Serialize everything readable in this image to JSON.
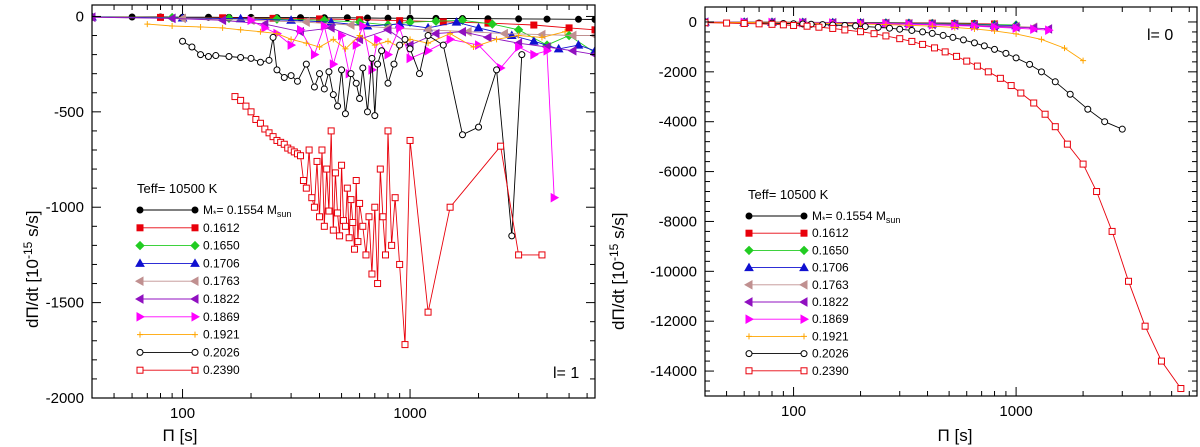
{
  "chart_data": [
    {
      "type": "line",
      "panel": "left",
      "xscale": "log",
      "xlim": [
        40,
        6500
      ],
      "ylim": [
        -2000,
        60
      ],
      "xticks": [
        100,
        1000
      ],
      "xtick_labels": [
        "100",
        "1000"
      ],
      "yticks": [
        0,
        -500,
        -1000,
        -1500,
        -2000
      ],
      "ytick_labels": [
        "0",
        "-500",
        "-1000",
        "-1500",
        "-2000"
      ],
      "xlabel": "Π [s]",
      "ylabel": "dΠ/dt [10",
      "ylabel_sup": "-15",
      "ylabel_tail": " s/s]",
      "annotation": "l= 1",
      "legend_title": "Teff= 10500 K",
      "legend_placement": "lower-left",
      "series": [
        {
          "name": "M*= 0.1554 Msun",
          "color": "#000000",
          "marker": "circle-filled",
          "x": [
            40,
            60,
            80,
            100,
            130,
            160,
            200,
            260,
            330,
            420,
            530,
            650,
            800,
            1000,
            1300,
            1700,
            2200,
            3000,
            4000,
            5500,
            6500
          ],
          "y": [
            -2,
            -3,
            -3,
            -4,
            -4,
            -5,
            -5,
            -6,
            -6,
            -7,
            -7,
            -8,
            -9,
            -9,
            -10,
            -11,
            -12,
            -13,
            -14,
            -15,
            -16
          ]
        },
        {
          "name": "0.1612",
          "color": "#e8000b",
          "marker": "square-filled",
          "x": [
            40,
            80,
            150,
            250,
            400,
            600,
            900,
            1400,
            2200,
            3500,
            5000,
            6500
          ],
          "y": [
            -3,
            -5,
            -7,
            -10,
            -13,
            -17,
            -22,
            -28,
            -35,
            -45,
            -60,
            -70
          ]
        },
        {
          "name": "0.1650",
          "color": "#22cc22",
          "marker": "diamond-filled",
          "x": [
            40,
            90,
            160,
            260,
            420,
            600,
            800,
            1000,
            1300,
            1700,
            2300,
            3000,
            4000,
            5000,
            6500
          ],
          "y": [
            -3,
            -6,
            -10,
            -14,
            -20,
            -30,
            -45,
            -30,
            -25,
            -20,
            -40,
            -70,
            -150,
            -100,
            -190
          ]
        },
        {
          "name": "0.1706",
          "color": "#1010d0",
          "marker": "triangle-up",
          "x": [
            40,
            100,
            180,
            300,
            450,
            650,
            900,
            1200,
            1600,
            2000,
            2800,
            3500,
            4500,
            5500,
            6500
          ],
          "y": [
            -3,
            -8,
            -12,
            -20,
            -30,
            -50,
            -40,
            -60,
            -30,
            -60,
            -100,
            -130,
            -170,
            -150,
            -180
          ]
        },
        {
          "name": "0.1763",
          "color": "#c09090",
          "marker": "triangle-left",
          "x": [
            40,
            100,
            200,
            350,
            550,
            800,
            1200,
            1800,
            2600,
            3800,
            5200,
            6500
          ],
          "y": [
            -4,
            -10,
            -20,
            -30,
            -45,
            -60,
            -70,
            -80,
            -90,
            -95,
            -100,
            -100
          ]
        },
        {
          "name": "0.1822",
          "color": "#9010c0",
          "marker": "triangle-left",
          "x": [
            40,
            90,
            150,
            230,
            330,
            450,
            600,
            800,
            1000,
            1300,
            1700,
            2200,
            3000,
            4000,
            5200,
            6500
          ],
          "y": [
            -4,
            -10,
            -20,
            -40,
            -80,
            -60,
            -120,
            -70,
            -150,
            -90,
            -80,
            -110,
            -140,
            -160,
            -180,
            -200
          ]
        },
        {
          "name": "0.1869",
          "color": "#ff00ff",
          "marker": "triangle-right",
          "x": [
            200,
            230,
            260,
            300,
            330,
            380,
            420,
            460,
            500,
            540,
            580,
            620,
            680,
            720,
            800,
            900,
            1000,
            1200,
            1500,
            2000,
            2500,
            3000,
            3500,
            4000,
            4300
          ],
          "y": [
            -20,
            -60,
            -90,
            -150,
            -70,
            -200,
            -50,
            -250,
            -100,
            -300,
            -150,
            -50,
            -280,
            -120,
            -200,
            -60,
            -220,
            -180,
            -120,
            -150,
            -270,
            -160,
            -200,
            -180,
            -950
          ]
        },
        {
          "name": "0.1921",
          "color": "#ffa500",
          "marker": "plus",
          "x": [
            70,
            90,
            120,
            150,
            180,
            220,
            260,
            300,
            350,
            400,
            460,
            520,
            600,
            700,
            800,
            900,
            1000,
            1200,
            1500,
            1900,
            2400,
            3000,
            3800,
            4800
          ],
          "y": [
            -40,
            -50,
            -55,
            -60,
            -70,
            -80,
            -90,
            -120,
            -140,
            -160,
            -120,
            -170,
            -100,
            -150,
            -130,
            -160,
            -120,
            -140,
            -90,
            -160,
            -120,
            -100,
            -110,
            -80
          ]
        },
        {
          "name": "0.2026",
          "color": "#000000",
          "marker": "circle-open",
          "x": [
            100,
            110,
            120,
            130,
            140,
            160,
            180,
            200,
            220,
            240,
            250,
            260,
            280,
            300,
            320,
            350,
            380,
            400,
            420,
            440,
            460,
            480,
            500,
            520,
            550,
            580,
            600,
            620,
            650,
            680,
            700,
            720,
            750,
            800,
            850,
            900,
            950,
            1000,
            1100,
            1200,
            1400,
            1700,
            2000,
            2400,
            2800,
            3100
          ],
          "y": [
            -130,
            -160,
            -200,
            -210,
            -205,
            -210,
            -215,
            -220,
            -240,
            -230,
            -110,
            -280,
            -320,
            -310,
            -340,
            -250,
            -370,
            -300,
            -380,
            -290,
            -410,
            -470,
            -280,
            -510,
            -300,
            -350,
            -430,
            -270,
            -500,
            -220,
            -520,
            -250,
            -180,
            -350,
            -250,
            -150,
            -120,
            -170,
            -300,
            -100,
            -150,
            -620,
            -580,
            -280,
            -1150,
            -200
          ]
        },
        {
          "name": "0.2390",
          "color": "#e8000b",
          "marker": "square-open",
          "x": [
            170,
            180,
            190,
            200,
            210,
            220,
            230,
            240,
            250,
            260,
            270,
            280,
            290,
            300,
            310,
            320,
            330,
            340,
            350,
            360,
            370,
            380,
            390,
            400,
            410,
            420,
            430,
            440,
            450,
            460,
            470,
            480,
            490,
            500,
            510,
            520,
            530,
            540,
            550,
            560,
            570,
            580,
            590,
            600,
            620,
            640,
            660,
            680,
            700,
            720,
            740,
            760,
            780,
            800,
            830,
            860,
            900,
            950,
            1000,
            1200,
            1500,
            2500,
            3000,
            3800
          ],
          "y": [
            -420,
            -440,
            -470,
            -500,
            -540,
            -560,
            -590,
            -610,
            -630,
            -650,
            -660,
            -670,
            -690,
            -700,
            -710,
            -720,
            -730,
            -860,
            -900,
            -700,
            -950,
            -1000,
            -760,
            -1050,
            -700,
            -1100,
            -800,
            -1020,
            -600,
            -1120,
            -820,
            -1030,
            -1150,
            -780,
            -1070,
            -1100,
            -900,
            -1160,
            -960,
            -1080,
            -1220,
            -860,
            -1180,
            -980,
            -1100,
            -1250,
            -1050,
            -1350,
            -1000,
            -1400,
            -800,
            -1050,
            -1250,
            -600,
            -1200,
            -950,
            -1300,
            -1720,
            -650,
            -1550,
            -1000,
            -680,
            -1250,
            -1250
          ]
        }
      ]
    },
    {
      "type": "line",
      "panel": "right",
      "xscale": "log",
      "xlim": [
        40,
        6500
      ],
      "ylim": [
        -15000,
        600
      ],
      "xticks": [
        100,
        1000
      ],
      "xtick_labels": [
        "100",
        "1000"
      ],
      "yticks": [
        0,
        -2000,
        -4000,
        -6000,
        -8000,
        -10000,
        -12000,
        -14000
      ],
      "ytick_labels": [
        "0",
        "-2000",
        "-4000",
        "-6000",
        "-8000",
        "-10000",
        "-12000",
        "-14000"
      ],
      "xlabel": "Π [s]",
      "ylabel": "dΠ/dt [10",
      "ylabel_sup": "-15",
      "ylabel_tail": " s/s]",
      "annotation": "l= 0",
      "legend_title": "Teff= 10500 K",
      "legend_placement": "lower-left",
      "series": [
        {
          "name": "M*= 0.1554 Msun",
          "color": "#000000",
          "marker": "circle-filled",
          "x": [
            40,
            60,
            80,
            110,
            150,
            200,
            260,
            330,
            420,
            530,
            650
          ],
          "y": [
            -5,
            -8,
            -10,
            -14,
            -18,
            -22,
            -28,
            -34,
            -40,
            -48,
            -55
          ]
        },
        {
          "name": "0.1612",
          "color": "#e8000b",
          "marker": "square-filled",
          "x": [
            40,
            60,
            80,
            110,
            150,
            200,
            260,
            330,
            420,
            530,
            650,
            800
          ],
          "y": [
            -6,
            -9,
            -12,
            -16,
            -22,
            -28,
            -35,
            -42,
            -50,
            -60,
            -70,
            -80
          ]
        },
        {
          "name": "0.1650",
          "color": "#22cc22",
          "marker": "diamond-filled",
          "x": [
            40,
            60,
            80,
            110,
            150,
            200,
            260,
            330,
            420,
            530,
            650,
            800,
            1000
          ],
          "y": [
            -7,
            -10,
            -14,
            -19,
            -26,
            -34,
            -42,
            -52,
            -62,
            -75,
            -90,
            -105,
            -120
          ]
        },
        {
          "name": "0.1706",
          "color": "#1010d0",
          "marker": "triangle-up",
          "x": [
            40,
            60,
            80,
            110,
            150,
            200,
            260,
            330,
            420,
            530,
            650,
            800,
            1000
          ],
          "y": [
            -8,
            -12,
            -16,
            -22,
            -30,
            -40,
            -50,
            -62,
            -75,
            -90,
            -110,
            -130,
            -150
          ]
        },
        {
          "name": "0.1763",
          "color": "#c09090",
          "marker": "triangle-left",
          "x": [
            40,
            60,
            80,
            110,
            150,
            200,
            260,
            330,
            420,
            530,
            650,
            800,
            1000,
            1200
          ],
          "y": [
            -9,
            -13,
            -18,
            -25,
            -34,
            -46,
            -58,
            -72,
            -88,
            -108,
            -130,
            -155,
            -180,
            -210
          ]
        },
        {
          "name": "0.1822",
          "color": "#9010c0",
          "marker": "triangle-left",
          "x": [
            40,
            60,
            80,
            110,
            150,
            200,
            260,
            330,
            420,
            530,
            650,
            800,
            1000,
            1200,
            1400
          ],
          "y": [
            -10,
            -15,
            -20,
            -28,
            -38,
            -50,
            -65,
            -80,
            -100,
            -125,
            -150,
            -180,
            -210,
            -240,
            -280
          ]
        },
        {
          "name": "0.1869",
          "color": "#ff00ff",
          "marker": "triangle-right",
          "x": [
            40,
            60,
            80,
            110,
            150,
            200,
            260,
            330,
            420,
            530,
            650,
            800,
            1000,
            1200,
            1400
          ],
          "y": [
            -11,
            -16,
            -22,
            -30,
            -42,
            -56,
            -72,
            -90,
            -115,
            -140,
            -170,
            -210,
            -250,
            -290,
            -330
          ]
        },
        {
          "name": "0.1921",
          "color": "#ffa500",
          "marker": "plus",
          "x": [
            40,
            60,
            80,
            110,
            150,
            200,
            260,
            330,
            420,
            530,
            650,
            800,
            1000,
            1300,
            1650,
            2000
          ],
          "y": [
            -15,
            -22,
            -30,
            -42,
            -60,
            -80,
            -105,
            -135,
            -170,
            -220,
            -280,
            -360,
            -480,
            -700,
            -1050,
            -1550
          ]
        },
        {
          "name": "0.2026",
          "color": "#000000",
          "marker": "circle-open",
          "x": [
            70,
            80,
            90,
            100,
            110,
            120,
            135,
            150,
            170,
            190,
            210,
            240,
            270,
            300,
            340,
            380,
            420,
            470,
            520,
            580,
            650,
            720,
            800,
            900,
            1000,
            1150,
            1300,
            1500,
            1750,
            2100,
            2500,
            3000
          ],
          "y": [
            -40,
            -50,
            -60,
            -70,
            -80,
            -90,
            -105,
            -120,
            -140,
            -160,
            -185,
            -215,
            -250,
            -290,
            -340,
            -400,
            -460,
            -540,
            -620,
            -720,
            -840,
            -960,
            -1100,
            -1260,
            -1440,
            -1700,
            -2000,
            -2400,
            -2900,
            -3500,
            -4000,
            -4300
          ]
        },
        {
          "name": "0.2390",
          "color": "#e8000b",
          "marker": "square-open",
          "x": [
            40,
            50,
            60,
            70,
            80,
            90,
            100,
            115,
            130,
            150,
            170,
            200,
            230,
            260,
            300,
            340,
            380,
            430,
            480,
            540,
            600,
            670,
            750,
            850,
            950,
            1050,
            1200,
            1350,
            1500,
            1700,
            2000,
            2300,
            2700,
            3200,
            3800,
            4500,
            5500
          ],
          "y": [
            -30,
            -45,
            -60,
            -75,
            -95,
            -115,
            -140,
            -170,
            -210,
            -260,
            -320,
            -390,
            -470,
            -560,
            -670,
            -780,
            -900,
            -1040,
            -1200,
            -1380,
            -1570,
            -1770,
            -2000,
            -2260,
            -2550,
            -2850,
            -3250,
            -3700,
            -4200,
            -4900,
            -5700,
            -6800,
            -8400,
            -10400,
            -12200,
            -13600,
            -14700
          ]
        }
      ]
    }
  ]
}
